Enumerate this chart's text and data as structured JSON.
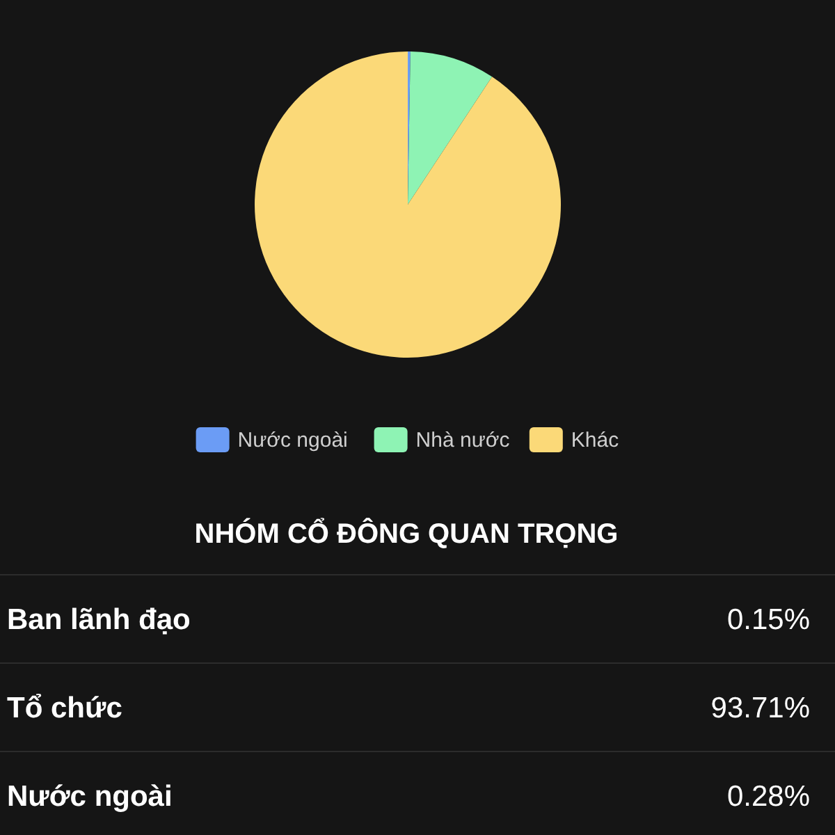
{
  "chart_data": [
    {
      "type": "pie",
      "categories": [
        "Nước ngoài",
        "Nhà nước",
        "Khác"
      ],
      "values": [
        0.28,
        9,
        90.72
      ],
      "colors": [
        "#6b9cf5",
        "#8ef3b4",
        "#fbd978"
      ],
      "legend": "bottom"
    },
    {
      "type": "other",
      "title": "NHÓM CỔ ĐÔNG QUAN TRỌNG",
      "annotations": [
        "Ban lãnh đạo",
        "0.15%",
        "Tổ chức",
        "93.71%",
        "Nước ngoài",
        "0.28%"
      ]
    }
  ]
}
